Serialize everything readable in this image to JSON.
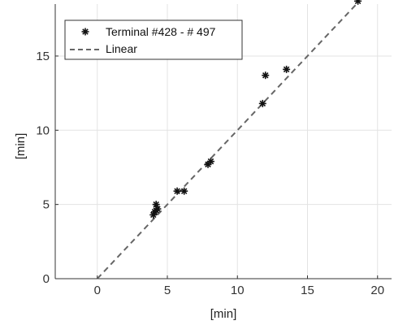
{
  "chart_data": {
    "type": "scatter",
    "xlabel": "[min]",
    "ylabel": "[min]",
    "xlim": [
      -3,
      21
    ],
    "ylim": [
      0,
      18.5
    ],
    "xticks": [
      0,
      5,
      10,
      15,
      20
    ],
    "yticks": [
      0,
      5,
      10,
      15
    ],
    "grid": true,
    "legend_position": "top-left",
    "series": [
      {
        "name": "Terminal #428 - # 497",
        "kind": "scatter",
        "marker": "asterisk",
        "color": "#111111",
        "points": [
          {
            "x": 4.0,
            "y": 4.3
          },
          {
            "x": 4.1,
            "y": 4.5
          },
          {
            "x": 4.2,
            "y": 4.6
          },
          {
            "x": 4.3,
            "y": 4.7
          },
          {
            "x": 4.2,
            "y": 5.0
          },
          {
            "x": 5.7,
            "y": 5.9
          },
          {
            "x": 6.2,
            "y": 5.9
          },
          {
            "x": 7.9,
            "y": 7.7
          },
          {
            "x": 8.1,
            "y": 7.9
          },
          {
            "x": 11.8,
            "y": 11.8
          },
          {
            "x": 12.0,
            "y": 13.7
          },
          {
            "x": 13.5,
            "y": 14.1
          },
          {
            "x": 18.6,
            "y": 18.7
          }
        ]
      },
      {
        "name": "Linear",
        "kind": "line",
        "style": "dashed",
        "color": "#666666",
        "x": [
          0,
          18.6
        ],
        "y": [
          0,
          18.6
        ]
      }
    ]
  }
}
